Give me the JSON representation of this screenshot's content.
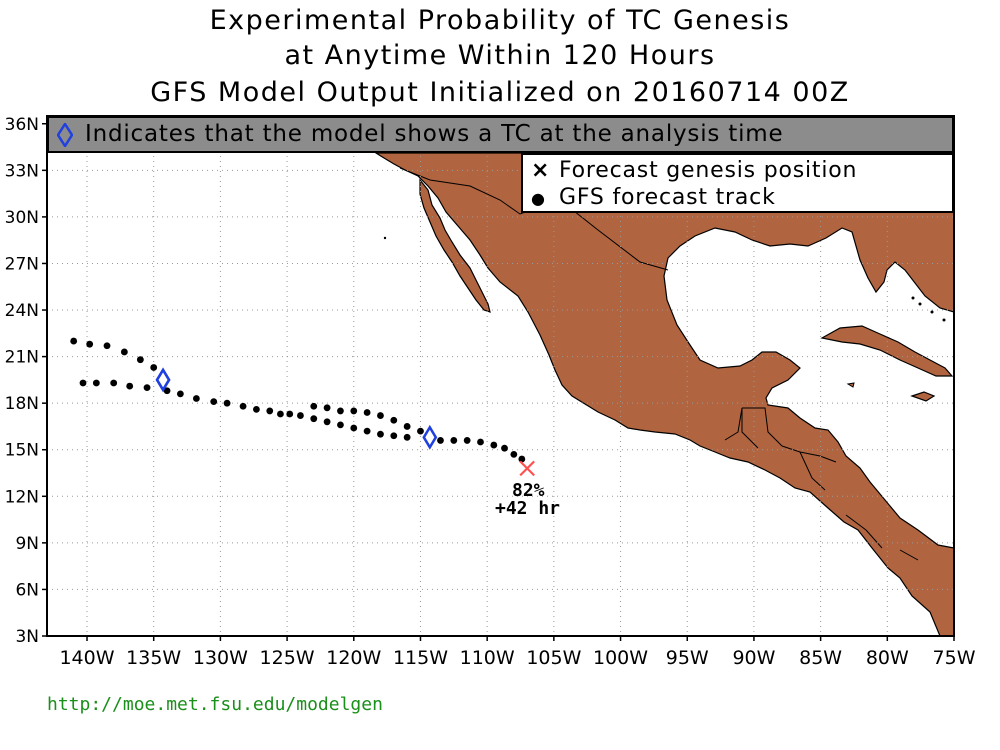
{
  "title": {
    "line1": "Experimental Probability of TC Genesis",
    "line2": "at Anytime Within 120 Hours",
    "line3": "GFS Model Output Initialized on 20160714 00Z"
  },
  "banner": {
    "text": "Indicates that the model shows a TC at the analysis time",
    "icon": "blue-diamond-icon",
    "background": "#8c8c8c"
  },
  "legend": {
    "genesis_label": "Forecast genesis position",
    "genesis_symbol": "×",
    "track_label": "GFS forecast track",
    "track_symbol": "●"
  },
  "axes": {
    "lon_labels": [
      "140W",
      "135W",
      "130W",
      "125W",
      "120W",
      "115W",
      "110W",
      "105W",
      "100W",
      "95W",
      "90W",
      "85W",
      "80W",
      "75W"
    ],
    "lat_labels": [
      "36N",
      "33N",
      "30N",
      "27N",
      "24N",
      "21N",
      "18N",
      "15N",
      "12N",
      "9N",
      "6N",
      "3N"
    ],
    "lon_range": [
      -143,
      -75
    ],
    "lat_range": [
      3,
      36.5
    ]
  },
  "colors": {
    "land": "#b0643f",
    "ocean": "#ffffff",
    "grid": "#999999",
    "analysis_marker": "#2040e0",
    "genesis_marker": "#ff5050",
    "url": "#1a8f1a"
  },
  "annotation": {
    "probability": "82%",
    "lead_time": "+42 hr"
  },
  "url": "http://moe.met.fsu.edu/modelgen",
  "tracks": [
    {
      "analysis_position": [
        -134.3,
        19.5
      ],
      "points": [
        [
          -141.0,
          22.0
        ],
        [
          -139.8,
          21.8
        ],
        [
          -138.5,
          21.7
        ],
        [
          -137.2,
          21.3
        ],
        [
          -136.0,
          20.8
        ],
        [
          -135.0,
          20.3
        ]
      ]
    },
    {
      "analysis_position": [
        -134.3,
        19.5
      ],
      "points": [
        [
          -140.3,
          19.3
        ],
        [
          -139.3,
          19.3
        ],
        [
          -138.0,
          19.3
        ],
        [
          -136.8,
          19.1
        ],
        [
          -135.5,
          19.0
        ],
        [
          -134.0,
          18.8
        ],
        [
          -133.0,
          18.6
        ],
        [
          -131.8,
          18.3
        ],
        [
          -130.5,
          18.1
        ],
        [
          -129.5,
          18.0
        ],
        [
          -128.3,
          17.8
        ],
        [
          -127.3,
          17.6
        ],
        [
          -126.3,
          17.5
        ],
        [
          -125.5,
          17.3
        ],
        [
          -124.8,
          17.3
        ],
        [
          -124.0,
          17.2
        ],
        [
          -123.0,
          17.0
        ],
        [
          -122.0,
          16.8
        ],
        [
          -121.0,
          16.6
        ],
        [
          -120.0,
          16.4
        ],
        [
          -119.0,
          16.2
        ],
        [
          -118.0,
          16.0
        ],
        [
          -117.0,
          15.9
        ],
        [
          -116.0,
          15.8
        ]
      ]
    },
    {
      "analysis_position": [
        -114.3,
        15.8
      ],
      "points": [
        [
          -123.0,
          17.8
        ],
        [
          -122.0,
          17.7
        ],
        [
          -121.0,
          17.5
        ],
        [
          -120.0,
          17.5
        ],
        [
          -119.0,
          17.4
        ],
        [
          -118.0,
          17.2
        ],
        [
          -117.0,
          16.9
        ],
        [
          -116.0,
          16.5
        ],
        [
          -115.0,
          16.2
        ],
        [
          -113.5,
          15.6
        ],
        [
          -112.5,
          15.6
        ],
        [
          -111.5,
          15.6
        ],
        [
          -110.5,
          15.5
        ],
        [
          -109.5,
          15.3
        ],
        [
          -108.7,
          15.1
        ],
        [
          -108.0,
          14.7
        ],
        [
          -107.4,
          14.4
        ]
      ],
      "genesis": [
        -107.0,
        13.8
      ]
    }
  ]
}
